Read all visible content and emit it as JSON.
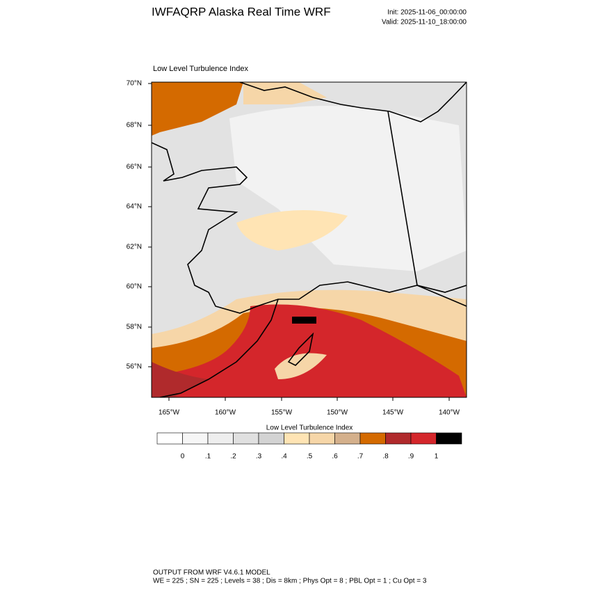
{
  "header": {
    "title": "IWFAQRP Alaska Real Time WRF",
    "init": "Init: 2025-11-06_00:00:00",
    "valid": "Valid: 2025-11-10_18:00:00"
  },
  "map": {
    "title": "Low Level Turbulence Index",
    "lat_labels": [
      "70°N",
      "68°N",
      "66°N",
      "64°N",
      "62°N",
      "60°N",
      "58°N",
      "56°N"
    ],
    "lon_labels": [
      "165°W",
      "160°W",
      "155°W",
      "150°W",
      "145°W",
      "140°W"
    ]
  },
  "colorbar": {
    "title": "Low Level Turbulence Index",
    "colors": [
      "#ffffff",
      "#f6f6f6",
      "#eeeeee",
      "#e0e0e0",
      "#d3d3d3",
      "#ffe4b4",
      "#f6d6a8",
      "#d4b08c",
      "#d46a00",
      "#b02a2c",
      "#d4262b",
      "#000000"
    ],
    "labels": [
      "0",
      ".1",
      ".2",
      ".3",
      ".4",
      ".5",
      ".6",
      ".7",
      ".8",
      ".9",
      "1"
    ]
  },
  "footer": {
    "line1": "OUTPUT FROM WRF V4.6.1 MODEL",
    "line2": "WE = 225 ; SN = 225 ; Levels = 38 ; Dis = 8km ; Phys Opt = 8 ; PBL Opt = 1 ; Cu Opt = 3"
  }
}
